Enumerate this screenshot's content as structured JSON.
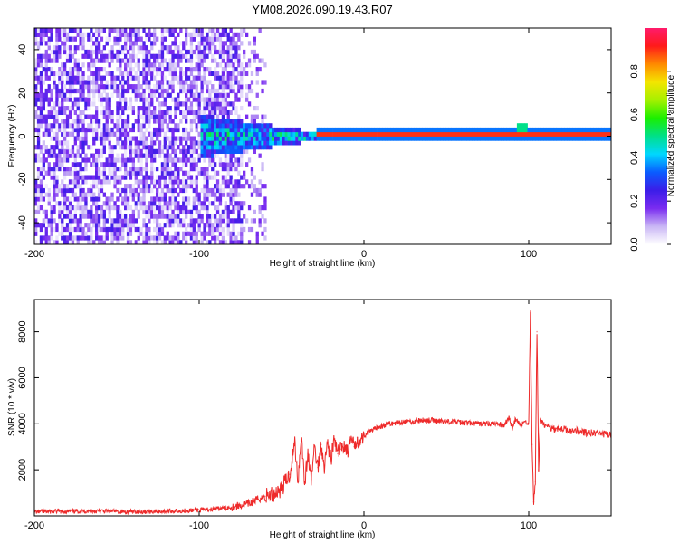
{
  "title": "YM08.2026.090.19.43.R07",
  "chart_data": [
    {
      "type": "heatmap",
      "title": "",
      "xlabel": "Height of straight line (km)",
      "ylabel": "Frequency (Hz)",
      "xlim": [
        -200,
        150
      ],
      "ylim": [
        -50,
        50
      ],
      "x_ticks": [
        -200,
        -100,
        0,
        100
      ],
      "y_ticks": [
        -40,
        -20,
        0,
        20,
        40
      ],
      "colorbar": {
        "label": "Normalized spectral amplitude",
        "range": [
          0,
          1
        ],
        "ticks": [
          "0.0",
          "0.2",
          "0.4",
          "0.6",
          "0.8"
        ],
        "colors": [
          "#ffffff",
          "#c9b6f5",
          "#7a2cf0",
          "#3b1de8",
          "#0a5cff",
          "#00d7ff",
          "#00e08a",
          "#1aef00",
          "#a6f000",
          "#f4e500",
          "#ff8a00",
          "#ff1a1a",
          "#ff1b6b"
        ]
      },
      "features": [
        {
          "description": "broadband noise",
          "x_range": [
            -200,
            -75
          ],
          "freq_range": [
            -50,
            50
          ],
          "amplitude_range": [
            0.02,
            0.25
          ]
        },
        {
          "description": "transition",
          "x_range": [
            -100,
            -30
          ],
          "freq_half_width_hz": [
            10,
            2
          ],
          "amplitude_range": [
            0.2,
            0.6
          ]
        },
        {
          "description": "carrier line",
          "x_range": [
            -30,
            150
          ],
          "freq_hz": 0,
          "amplitude": 0.9
        },
        {
          "description": "blip",
          "x": 95,
          "freq_hz": 2,
          "amplitude": 0.5
        }
      ]
    },
    {
      "type": "line",
      "title": "",
      "xlabel": "Height of straight line (km)",
      "ylabel": "SNR (10 * v/v)",
      "xlim": [
        -200,
        150
      ],
      "ylim": [
        0,
        9400
      ],
      "x_ticks": [
        -200,
        -100,
        0,
        100
      ],
      "y_ticks": [
        2000,
        4000,
        6000,
        8000
      ],
      "series": [
        {
          "name": "SNR",
          "color": "#ee2a2a",
          "x": [
            -200,
            -180,
            -160,
            -140,
            -120,
            -100,
            -90,
            -80,
            -75,
            -70,
            -65,
            -60,
            -55,
            -50,
            -45,
            -42,
            -40,
            -38,
            -36,
            -34,
            -32,
            -30,
            -28,
            -26,
            -24,
            -22,
            -20,
            -18,
            -16,
            -14,
            -12,
            -10,
            -8,
            -6,
            -4,
            -2,
            0,
            5,
            10,
            15,
            20,
            25,
            30,
            35,
            40,
            50,
            60,
            70,
            80,
            85,
            88,
            90,
            92,
            95,
            98,
            100,
            101,
            102,
            103,
            104,
            105,
            106,
            107,
            110,
            115,
            120,
            125,
            130,
            135,
            140,
            145,
            150
          ],
          "values": [
            180,
            200,
            210,
            180,
            200,
            250,
            300,
            380,
            450,
            520,
            700,
            850,
            950,
            1200,
            1800,
            3200,
            1500,
            3600,
            1400,
            2700,
            1600,
            3000,
            2100,
            3100,
            2200,
            3200,
            2500,
            3300,
            2700,
            2900,
            3100,
            2800,
            3300,
            3000,
            3400,
            3200,
            3500,
            3700,
            3900,
            4000,
            4050,
            4100,
            4100,
            4150,
            4150,
            4100,
            4050,
            4000,
            4000,
            3950,
            4300,
            3800,
            4200,
            3900,
            4100,
            4000,
            8900,
            3100,
            600,
            1500,
            8000,
            2000,
            4200,
            3900,
            3800,
            3800,
            3700,
            3700,
            3600,
            3600,
            3550,
            3500
          ]
        }
      ]
    }
  ]
}
